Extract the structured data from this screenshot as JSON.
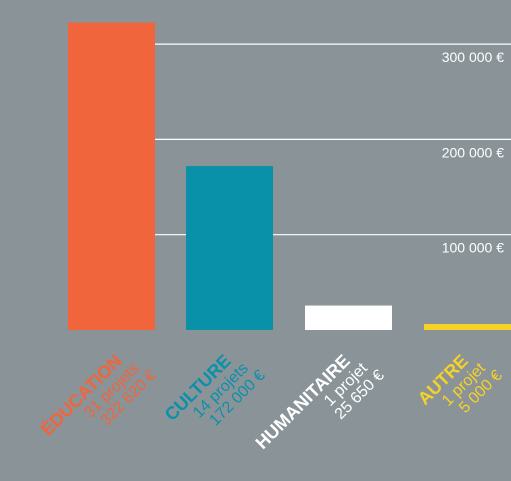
{
  "chart_data": {
    "type": "bar",
    "categories": [
      "ÉDUCATION",
      "CULTURE",
      "HUMANITAIRE",
      "AUTRE"
    ],
    "values": [
      322620,
      172000,
      25650,
      5000
    ],
    "project_counts": [
      "31 projets",
      "14 projets",
      "1 projet",
      "1 projet"
    ],
    "value_labels": [
      "322 620 €",
      "172 000 €",
      "25 650 €",
      "5 000 €"
    ],
    "yticks": [
      100000,
      200000,
      300000
    ],
    "ytick_labels": [
      "100 000 €",
      "200 000 €",
      "300 000 €"
    ],
    "ylim": [
      0,
      340000
    ],
    "grid": true,
    "ytick_position": "right",
    "colors": [
      "#f0653c",
      "#0a91aa",
      "#ffffff",
      "#f7d226"
    ],
    "background": "#8a9398",
    "grid_color": "#ffffff",
    "title": "",
    "xlabel": "",
    "ylabel": ""
  }
}
